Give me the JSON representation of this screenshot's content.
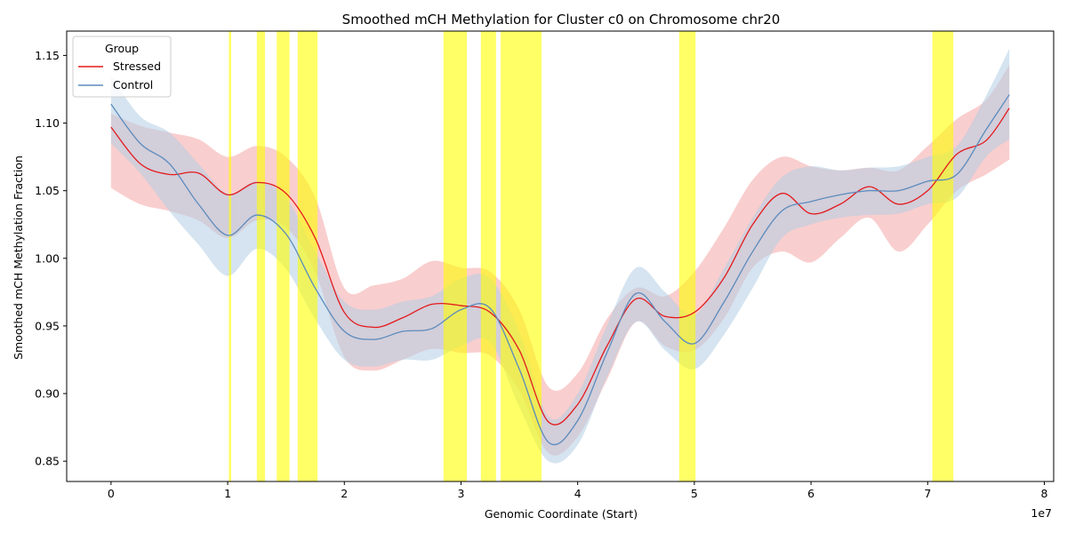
{
  "chart_data": {
    "type": "line",
    "title": "Smoothed mCH Methylation for Cluster c0 on Chromosome chr20",
    "xlabel": "Genomic Coordinate (Start)",
    "ylabel": "Smoothed mCH Methylation Fraction",
    "x_offset_label": "1e7",
    "xlim": [
      -0.38,
      8.08
    ],
    "ylim": [
      0.835,
      1.168
    ],
    "x_unit_scale": 10000000,
    "xticks": [
      0,
      1,
      2,
      3,
      4,
      5,
      6,
      7,
      8
    ],
    "xtick_labels": [
      "0",
      "1",
      "2",
      "3",
      "4",
      "5",
      "6",
      "7",
      "8"
    ],
    "yticks": [
      0.85,
      0.9,
      0.95,
      1.0,
      1.05,
      1.1,
      1.15
    ],
    "ytick_labels": [
      "0.85",
      "0.90",
      "0.95",
      "1.00",
      "1.05",
      "1.10",
      "1.15"
    ],
    "grid": false,
    "legend": {
      "title": "Group",
      "position": "top-left"
    },
    "highlight_color": "#ffff00",
    "highlight_regions": [
      [
        1.01,
        1.03
      ],
      [
        1.25,
        1.32
      ],
      [
        1.42,
        1.53
      ],
      [
        1.6,
        1.77
      ],
      [
        2.85,
        3.05
      ],
      [
        3.17,
        3.3
      ],
      [
        3.34,
        3.69
      ],
      [
        4.87,
        5.01
      ],
      [
        7.04,
        7.22
      ]
    ],
    "x": [
      0,
      0.25,
      0.5,
      0.75,
      1.0,
      1.25,
      1.5,
      1.75,
      2.0,
      2.25,
      2.5,
      2.75,
      3.0,
      3.25,
      3.5,
      3.75,
      4.0,
      4.25,
      4.5,
      4.75,
      5.0,
      5.25,
      5.5,
      5.75,
      6.0,
      6.25,
      6.5,
      6.75,
      7.0,
      7.25,
      7.5,
      7.7
    ],
    "series": [
      {
        "name": "Stressed",
        "color": "#e41a1c",
        "band_color": "#f4a6a6",
        "values": [
          1.097,
          1.07,
          1.062,
          1.063,
          1.047,
          1.056,
          1.048,
          1.015,
          0.96,
          0.949,
          0.956,
          0.966,
          0.965,
          0.96,
          0.932,
          0.879,
          0.892,
          0.935,
          0.97,
          0.957,
          0.96,
          0.985,
          1.025,
          1.048,
          1.033,
          1.04,
          1.053,
          1.04,
          1.05,
          1.077,
          1.087,
          1.111
        ],
        "lower": [
          1.052,
          1.04,
          1.035,
          1.028,
          1.015,
          1.028,
          1.023,
          0.99,
          0.927,
          0.917,
          0.925,
          0.933,
          0.93,
          0.928,
          0.902,
          0.856,
          0.868,
          0.91,
          0.953,
          0.935,
          0.932,
          0.955,
          0.993,
          1.005,
          0.997,
          1.015,
          1.03,
          1.005,
          1.025,
          1.05,
          1.062,
          1.073
        ],
        "upper": [
          1.107,
          1.098,
          1.093,
          1.088,
          1.075,
          1.083,
          1.075,
          1.045,
          0.978,
          0.98,
          0.985,
          0.998,
          0.993,
          0.99,
          0.962,
          0.905,
          0.915,
          0.955,
          0.978,
          0.972,
          0.99,
          1.022,
          1.058,
          1.075,
          1.068,
          1.065,
          1.067,
          1.065,
          1.083,
          1.103,
          1.117,
          1.143
        ]
      },
      {
        "name": "Control",
        "color": "#5b8bbd",
        "band_color": "#b3cde3",
        "values": [
          1.114,
          1.085,
          1.07,
          1.04,
          1.017,
          1.032,
          1.018,
          0.978,
          0.946,
          0.94,
          0.946,
          0.948,
          0.962,
          0.963,
          0.918,
          0.864,
          0.88,
          0.93,
          0.974,
          0.953,
          0.937,
          0.967,
          1.005,
          1.035,
          1.042,
          1.047,
          1.05,
          1.05,
          1.057,
          1.062,
          1.095,
          1.121
        ],
        "lower": [
          1.085,
          1.063,
          1.035,
          1.01,
          0.987,
          1.007,
          0.992,
          0.955,
          0.925,
          0.92,
          0.925,
          0.925,
          0.935,
          0.938,
          0.89,
          0.85,
          0.862,
          0.912,
          0.953,
          0.932,
          0.918,
          0.943,
          0.978,
          1.015,
          1.025,
          1.03,
          1.032,
          1.033,
          1.04,
          1.045,
          1.075,
          1.088
        ],
        "upper": [
          1.135,
          1.105,
          1.093,
          1.07,
          1.048,
          1.057,
          1.045,
          1.005,
          0.968,
          0.962,
          0.968,
          0.972,
          0.985,
          0.985,
          0.945,
          0.883,
          0.9,
          0.95,
          0.993,
          0.975,
          0.958,
          0.992,
          1.03,
          1.06,
          1.068,
          1.065,
          1.067,
          1.068,
          1.075,
          1.083,
          1.12,
          1.155
        ]
      }
    ]
  }
}
